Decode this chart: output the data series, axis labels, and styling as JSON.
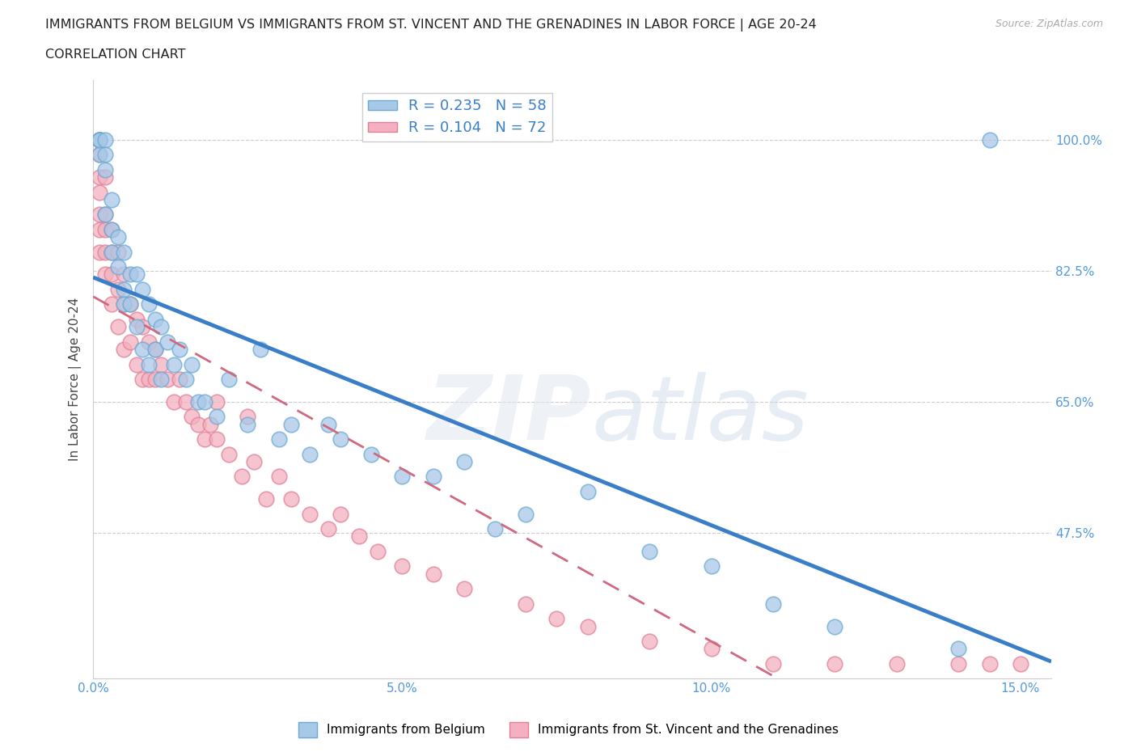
{
  "title_line1": "IMMIGRANTS FROM BELGIUM VS IMMIGRANTS FROM ST. VINCENT AND THE GRENADINES IN LABOR FORCE | AGE 20-24",
  "title_line2": "CORRELATION CHART",
  "source": "Source: ZipAtlas.com",
  "ylabel": "In Labor Force | Age 20-24",
  "xlim": [
    0.0,
    0.155
  ],
  "ylim": [
    0.28,
    1.08
  ],
  "xticks": [
    0.0,
    0.05,
    0.1,
    0.15
  ],
  "xticklabels": [
    "0.0%",
    "5.0%",
    "10.0%",
    "15.0%"
  ],
  "yticks": [
    0.475,
    0.65,
    0.825,
    1.0
  ],
  "yticklabels": [
    "47.5%",
    "65.0%",
    "82.5%",
    "100.0%"
  ],
  "blue_R": 0.235,
  "blue_N": 58,
  "pink_R": 0.104,
  "pink_N": 72,
  "blue_color": "#a8c8e8",
  "pink_color": "#f4b0c0",
  "blue_edge": "#6aaad4",
  "pink_edge": "#e08098",
  "trend_blue": "#3a7ec8",
  "trend_pink": "#d06880",
  "legend_label_blue": "Immigrants from Belgium",
  "legend_label_pink": "Immigrants from St. Vincent and the Grenadines",
  "blue_x": [
    0.001,
    0.001,
    0.001,
    0.001,
    0.001,
    0.002,
    0.002,
    0.002,
    0.002,
    0.003,
    0.003,
    0.003,
    0.004,
    0.004,
    0.005,
    0.005,
    0.005,
    0.006,
    0.006,
    0.007,
    0.007,
    0.008,
    0.008,
    0.009,
    0.009,
    0.01,
    0.01,
    0.011,
    0.011,
    0.012,
    0.013,
    0.014,
    0.015,
    0.016,
    0.017,
    0.018,
    0.02,
    0.022,
    0.025,
    0.027,
    0.03,
    0.032,
    0.035,
    0.038,
    0.04,
    0.045,
    0.05,
    0.055,
    0.06,
    0.065,
    0.07,
    0.08,
    0.09,
    0.1,
    0.11,
    0.12,
    0.14,
    0.145
  ],
  "blue_y": [
    1.0,
    1.0,
    1.0,
    1.0,
    0.98,
    1.0,
    0.98,
    0.96,
    0.9,
    0.92,
    0.88,
    0.85,
    0.87,
    0.83,
    0.85,
    0.8,
    0.78,
    0.82,
    0.78,
    0.82,
    0.75,
    0.8,
    0.72,
    0.78,
    0.7,
    0.76,
    0.72,
    0.75,
    0.68,
    0.73,
    0.7,
    0.72,
    0.68,
    0.7,
    0.65,
    0.65,
    0.63,
    0.68,
    0.62,
    0.72,
    0.6,
    0.62,
    0.58,
    0.62,
    0.6,
    0.58,
    0.55,
    0.55,
    0.57,
    0.48,
    0.5,
    0.53,
    0.45,
    0.43,
    0.38,
    0.35,
    0.32,
    1.0
  ],
  "pink_x": [
    0.001,
    0.001,
    0.001,
    0.001,
    0.001,
    0.001,
    0.001,
    0.001,
    0.001,
    0.001,
    0.002,
    0.002,
    0.002,
    0.002,
    0.002,
    0.003,
    0.003,
    0.003,
    0.003,
    0.004,
    0.004,
    0.004,
    0.005,
    0.005,
    0.005,
    0.006,
    0.006,
    0.007,
    0.007,
    0.008,
    0.008,
    0.009,
    0.009,
    0.01,
    0.01,
    0.011,
    0.012,
    0.013,
    0.014,
    0.015,
    0.016,
    0.017,
    0.018,
    0.019,
    0.02,
    0.022,
    0.024,
    0.026,
    0.028,
    0.03,
    0.032,
    0.035,
    0.038,
    0.04,
    0.043,
    0.046,
    0.05,
    0.055,
    0.06,
    0.07,
    0.075,
    0.08,
    0.09,
    0.1,
    0.11,
    0.12,
    0.13,
    0.14,
    0.145,
    0.15,
    0.02,
    0.025
  ],
  "pink_y": [
    1.0,
    1.0,
    1.0,
    1.0,
    0.98,
    0.95,
    0.93,
    0.9,
    0.88,
    0.85,
    0.95,
    0.9,
    0.88,
    0.85,
    0.82,
    0.88,
    0.85,
    0.82,
    0.78,
    0.85,
    0.8,
    0.75,
    0.82,
    0.78,
    0.72,
    0.78,
    0.73,
    0.76,
    0.7,
    0.75,
    0.68,
    0.73,
    0.68,
    0.72,
    0.68,
    0.7,
    0.68,
    0.65,
    0.68,
    0.65,
    0.63,
    0.62,
    0.6,
    0.62,
    0.6,
    0.58,
    0.55,
    0.57,
    0.52,
    0.55,
    0.52,
    0.5,
    0.48,
    0.5,
    0.47,
    0.45,
    0.43,
    0.42,
    0.4,
    0.38,
    0.36,
    0.35,
    0.33,
    0.32,
    0.3,
    0.3,
    0.3,
    0.3,
    0.3,
    0.3,
    0.65,
    0.63
  ]
}
